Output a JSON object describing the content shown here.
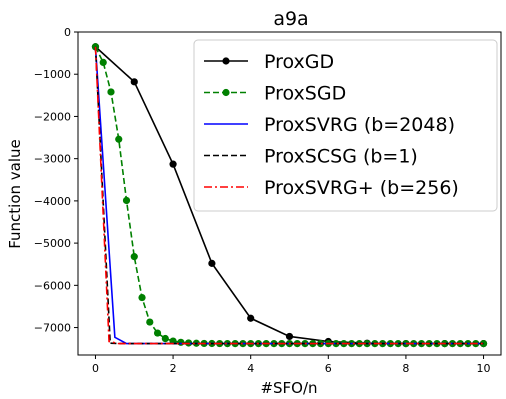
{
  "chart_data": {
    "type": "line",
    "title": "a9a",
    "xlabel": "#SFO/n",
    "ylabel": "Function value",
    "xlim": [
      -0.45,
      10.45
    ],
    "ylim": [
      -7650,
      0
    ],
    "x_ticks": [
      0,
      2,
      4,
      6,
      8,
      10
    ],
    "y_ticks": [
      0,
      -1000,
      -2000,
      -3000,
      -4000,
      -5000,
      -6000,
      -7000
    ],
    "x_tick_labels": [
      "0",
      "2",
      "4",
      "6",
      "8",
      "10"
    ],
    "y_tick_labels": [
      "0",
      "−1000",
      "−2000",
      "−3000",
      "−4000",
      "−5000",
      "−6000",
      "−7000"
    ],
    "grid": false,
    "legend_position": "top-right",
    "series": [
      {
        "name": "ProxGD",
        "color": "#000000",
        "line_style": "solid",
        "marker": "circle",
        "x": [
          0,
          1,
          2,
          3,
          4,
          5,
          6,
          7,
          8,
          9,
          10
        ],
        "y": [
          -350,
          -1180,
          -3130,
          -5480,
          -6780,
          -7210,
          -7330,
          -7370,
          -7380,
          -7380,
          -7380
        ]
      },
      {
        "name": "ProxSGD",
        "color": "#008000",
        "line_style": "dashed",
        "marker": "circle",
        "x": [
          0,
          0.2,
          0.4,
          0.6,
          0.8,
          1.0,
          1.2,
          1.4,
          1.6,
          1.8,
          2.0,
          2.2,
          2.4,
          2.6,
          2.8,
          3.0,
          3.2,
          3.4,
          3.6,
          3.8,
          4.0,
          4.2,
          4.4,
          4.6,
          4.8,
          5.0,
          5.2,
          5.4,
          5.6,
          5.8,
          6.0,
          6.2,
          6.4,
          6.6,
          6.8,
          7.0,
          7.2,
          7.4,
          7.6,
          7.8,
          8.0,
          8.2,
          8.4,
          8.6,
          8.8,
          9.0,
          9.2,
          9.4,
          9.6,
          9.8,
          10.0
        ],
        "y": [
          -350,
          -720,
          -1420,
          -2540,
          -3990,
          -5320,
          -6290,
          -6870,
          -7130,
          -7260,
          -7320,
          -7350,
          -7365,
          -7372,
          -7376,
          -7378,
          -7379,
          -7380,
          -7380,
          -7380,
          -7380,
          -7380,
          -7380,
          -7380,
          -7380,
          -7380,
          -7380,
          -7380,
          -7380,
          -7380,
          -7380,
          -7380,
          -7380,
          -7380,
          -7380,
          -7380,
          -7380,
          -7380,
          -7380,
          -7380,
          -7380,
          -7380,
          -7380,
          -7380,
          -7380,
          -7380,
          -7380,
          -7380,
          -7380,
          -7380,
          -7380
        ]
      },
      {
        "name": "ProxSVRG (b=2048)",
        "color": "#0000ff",
        "line_style": "solid",
        "marker": "none",
        "x": [
          0,
          0.5,
          0.8,
          10
        ],
        "y": [
          -350,
          -7230,
          -7380,
          -7380
        ]
      },
      {
        "name": "ProxSCSG (b=1)",
        "color": "#000000",
        "line_style": "dashed",
        "marker": "none",
        "x": [
          0,
          0.38,
          0.6,
          10
        ],
        "y": [
          -350,
          -7370,
          -7380,
          -7380
        ]
      },
      {
        "name": "ProxSVRG+ (b=256)",
        "color": "#ff0000",
        "line_style": "dashdot",
        "marker": "none",
        "x": [
          0,
          0.35,
          0.6,
          10
        ],
        "y": [
          -350,
          -7330,
          -7380,
          -7380
        ]
      }
    ]
  }
}
